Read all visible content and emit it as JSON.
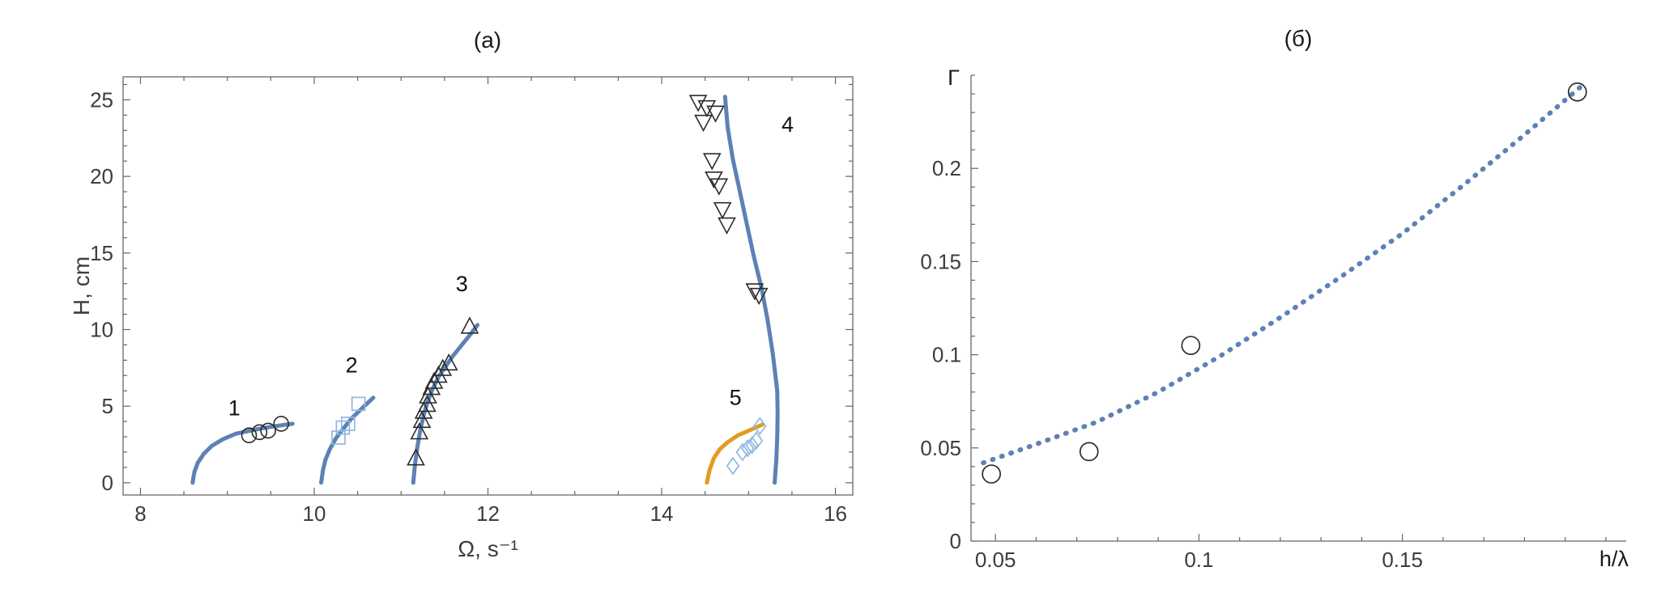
{
  "colors": {
    "curve_blue": "#5E81B5",
    "curve_orange": "#E19C24",
    "marker_light_blue": "#8FB8DE",
    "marker_black": "#2B2B2B",
    "axis_gray": "#666666",
    "tick_label_gray": "#3d3d3d"
  },
  "chart_data": [
    {
      "id": "a",
      "type": "line+scatter",
      "title": "(a)",
      "xlabel": "Ω, s⁻¹",
      "ylabel": "H, cm",
      "xlim": [
        7.8,
        16.2
      ],
      "ylim": [
        -0.8,
        26.5
      ],
      "xticks": [
        8,
        10,
        12,
        14,
        16
      ],
      "xtick_labels": [
        "8",
        "10",
        "12",
        "14",
        "16"
      ],
      "yticks": [
        0,
        5,
        10,
        15,
        20,
        25
      ],
      "ytick_labels": [
        "0",
        "5",
        "10",
        "15",
        "20",
        "25"
      ],
      "x_minor": {
        "from": 8,
        "to": 16,
        "step": 0.5
      },
      "y_minor": {
        "from": 0,
        "to": 26,
        "step": 1
      },
      "frame": true,
      "legend": "off",
      "grid": "off",
      "series": [
        {
          "name": "branch-1-curve",
          "kind": "line",
          "color": "#5E81B5",
          "width": 5,
          "points": [
            [
              8.6,
              0
            ],
            [
              8.62,
              0.7
            ],
            [
              8.66,
              1.3
            ],
            [
              8.73,
              1.9
            ],
            [
              8.82,
              2.4
            ],
            [
              8.95,
              2.85
            ],
            [
              9.1,
              3.2
            ],
            [
              9.3,
              3.45
            ],
            [
              9.5,
              3.65
            ],
            [
              9.75,
              3.85
            ]
          ]
        },
        {
          "name": "branch-2-curve",
          "kind": "line",
          "color": "#5E81B5",
          "width": 5,
          "points": [
            [
              10.08,
              0
            ],
            [
              10.1,
              0.8
            ],
            [
              10.13,
              1.5
            ],
            [
              10.18,
              2.2
            ],
            [
              10.25,
              2.9
            ],
            [
              10.33,
              3.5
            ],
            [
              10.43,
              4.2
            ],
            [
              10.54,
              4.8
            ],
            [
              10.68,
              5.55
            ]
          ]
        },
        {
          "name": "branch-3-curve",
          "kind": "line",
          "color": "#5E81B5",
          "width": 5,
          "points": [
            [
              11.14,
              0
            ],
            [
              11.16,
              1.2
            ],
            [
              11.19,
              2.4
            ],
            [
              11.22,
              3.4
            ],
            [
              11.26,
              4.4
            ],
            [
              11.3,
              5.2
            ],
            [
              11.36,
              6.1
            ],
            [
              11.43,
              6.9
            ],
            [
              11.5,
              7.5
            ],
            [
              11.6,
              8.3
            ],
            [
              11.7,
              9.0
            ],
            [
              11.8,
              9.7
            ],
            [
              11.88,
              10.3
            ]
          ]
        },
        {
          "name": "branch-4-curve",
          "kind": "line",
          "color": "#5E81B5",
          "width": 5,
          "points": [
            [
              15.3,
              0
            ],
            [
              15.32,
              1.5
            ],
            [
              15.33,
              3
            ],
            [
              15.335,
              4.5
            ],
            [
              15.33,
              6
            ],
            [
              15.28,
              8.4
            ],
            [
              15.22,
              10.6
            ],
            [
              15.15,
              12.7
            ],
            [
              15.06,
              14.8
            ],
            [
              14.98,
              16.9
            ],
            [
              14.9,
              19
            ],
            [
              14.82,
              21.1
            ],
            [
              14.76,
              23.2
            ],
            [
              14.73,
              25.2
            ]
          ]
        },
        {
          "name": "branch-5-curve",
          "kind": "line",
          "color": "#E19C24",
          "width": 5,
          "points": [
            [
              14.52,
              0
            ],
            [
              14.55,
              0.8
            ],
            [
              14.6,
              1.6
            ],
            [
              14.67,
              2.2
            ],
            [
              14.76,
              2.65
            ],
            [
              14.88,
              3.1
            ],
            [
              15.0,
              3.4
            ],
            [
              15.16,
              3.8
            ]
          ]
        },
        {
          "name": "branch-1-points",
          "kind": "markers",
          "shape": "circle",
          "color": "#2B2B2B",
          "size": 9,
          "stroke_width": 1.6,
          "points": [
            [
              9.25,
              3.1
            ],
            [
              9.37,
              3.3
            ],
            [
              9.47,
              3.4
            ],
            [
              9.62,
              3.85
            ]
          ]
        },
        {
          "name": "branch-2-points",
          "kind": "markers",
          "shape": "square",
          "color": "#8FB8DE",
          "size": 8,
          "stroke_width": 1.7,
          "points": [
            [
              10.28,
              2.95
            ],
            [
              10.33,
              3.6
            ],
            [
              10.39,
              3.85
            ],
            [
              10.51,
              5.15
            ]
          ]
        },
        {
          "name": "branch-3-points",
          "kind": "markers",
          "shape": "triangle-up",
          "color": "#2B2B2B",
          "size": 10,
          "stroke_width": 1.6,
          "points": [
            [
              11.17,
              1.55
            ],
            [
              11.21,
              3.25
            ],
            [
              11.24,
              4.0
            ],
            [
              11.26,
              4.6
            ],
            [
              11.3,
              5.05
            ],
            [
              11.31,
              5.6
            ],
            [
              11.35,
              6.15
            ],
            [
              11.38,
              6.55
            ],
            [
              11.43,
              6.95
            ],
            [
              11.48,
              7.4
            ],
            [
              11.55,
              7.75
            ],
            [
              11.79,
              10.15
            ]
          ]
        },
        {
          "name": "branch-4-points",
          "kind": "markers",
          "shape": "triangle-down",
          "color": "#2B2B2B",
          "size": 10,
          "stroke_width": 1.6,
          "points": [
            [
              14.42,
              24.9
            ],
            [
              14.52,
              24.55
            ],
            [
              14.62,
              24.2
            ],
            [
              14.48,
              23.6
            ],
            [
              14.58,
              21.1
            ],
            [
              14.6,
              19.9
            ],
            [
              14.66,
              19.45
            ],
            [
              14.7,
              17.9
            ],
            [
              14.75,
              16.9
            ],
            [
              15.07,
              12.6
            ],
            [
              15.12,
              12.3
            ]
          ]
        },
        {
          "name": "branch-5-points",
          "kind": "markers",
          "shape": "diamond",
          "color": "#8FB8DE",
          "size": 9,
          "stroke_width": 1.7,
          "points": [
            [
              14.82,
              1.1
            ],
            [
              14.93,
              2.0
            ],
            [
              14.99,
              2.25
            ],
            [
              15.04,
              2.45
            ],
            [
              15.09,
              2.75
            ],
            [
              15.13,
              3.7
            ]
          ]
        }
      ],
      "annotations": [
        {
          "label": "1",
          "x": 9.08,
          "y": 4.4
        },
        {
          "label": "2",
          "x": 10.43,
          "y": 7.2
        },
        {
          "label": "3",
          "x": 11.7,
          "y": 12.5
        },
        {
          "label": "4",
          "x": 15.45,
          "y": 22.9
        },
        {
          "label": "5",
          "x": 14.85,
          "y": 5.1
        }
      ]
    },
    {
      "id": "b",
      "type": "line+scatter",
      "title": "(б)",
      "xlabel": "h/λ",
      "ylabel": "Γ",
      "xlim": [
        0.044,
        0.205
      ],
      "ylim": [
        0,
        0.25
      ],
      "xticks": [
        0.05,
        0.1,
        0.15
      ],
      "xtick_labels": [
        "0.05",
        "0.1",
        "0.15"
      ],
      "yticks": [
        0,
        0.05,
        0.1,
        0.15,
        0.2
      ],
      "ytick_labels": [
        "0",
        "0.05",
        "0.1",
        "0.15",
        "0.2"
      ],
      "x_minor": {
        "from": 0.05,
        "to": 0.2,
        "step": 0.01
      },
      "y_minor": {
        "from": 0,
        "to": 0.25,
        "step": 0.01
      },
      "frame": false,
      "xlabel_x": 0.2,
      "legend": "off",
      "grid": "off",
      "series": [
        {
          "name": "fit-curve",
          "kind": "line",
          "color": "#5E81B5",
          "width": 6,
          "dash": "dotted",
          "points": [
            [
              0.047,
              0.042
            ],
            [
              0.06,
              0.052
            ],
            [
              0.075,
              0.064
            ],
            [
              0.09,
              0.08
            ],
            [
              0.105,
              0.099
            ],
            [
              0.12,
              0.12
            ],
            [
              0.135,
              0.142
            ],
            [
              0.15,
              0.165
            ],
            [
              0.165,
              0.191
            ],
            [
              0.18,
              0.218
            ],
            [
              0.195,
              0.246
            ]
          ]
        },
        {
          "name": "data-points",
          "kind": "markers",
          "shape": "circle",
          "color": "#2B2B2B",
          "size": 11,
          "stroke_width": 1.7,
          "points": [
            [
              0.049,
              0.036
            ],
            [
              0.073,
              0.048
            ],
            [
              0.098,
              0.105
            ],
            [
              0.193,
              0.241
            ]
          ]
        }
      ],
      "annotations": []
    }
  ]
}
